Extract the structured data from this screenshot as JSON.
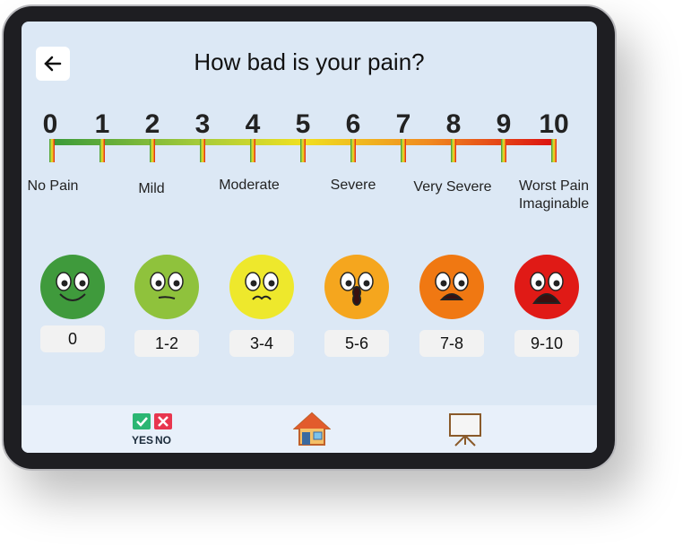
{
  "header": {
    "title": "How bad is your pain?"
  },
  "scale": {
    "numbers": [
      0,
      1,
      2,
      3,
      4,
      5,
      6,
      7,
      8,
      9,
      10
    ],
    "labels": [
      "No Pain",
      "Mild",
      "Moderate",
      "Severe",
      "Very Severe",
      "Worst Pain Imaginable"
    ]
  },
  "faces": [
    {
      "rating": "0",
      "color": "#3f9a3c"
    },
    {
      "rating": "1-2",
      "color": "#8fc23c"
    },
    {
      "rating": "3-4",
      "color": "#eee82c"
    },
    {
      "rating": "5-6",
      "color": "#f5a61e"
    },
    {
      "rating": "7-8",
      "color": "#f07812"
    },
    {
      "rating": "9-10",
      "color": "#e01a16"
    }
  ],
  "footer": {
    "yes": "YES",
    "no": "NO"
  }
}
